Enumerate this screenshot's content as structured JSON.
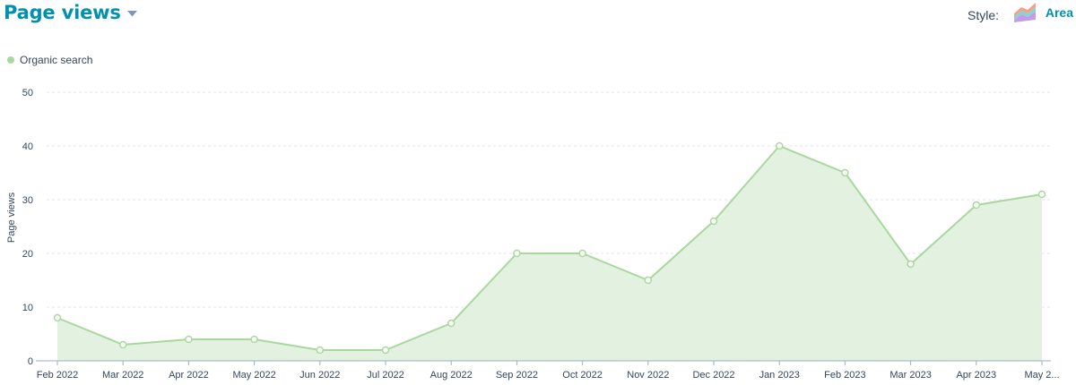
{
  "header": {
    "title": "Page views",
    "style_label": "Style:",
    "style_value": "Area"
  },
  "colors": {
    "accent": "#0091ae",
    "series_line": "#a8d89d",
    "series_fill": "#e3f2e0",
    "text": "#33475b"
  },
  "chart_data": {
    "type": "area",
    "ylabel": "Page views",
    "xlabel": "",
    "ylim": [
      0,
      50
    ],
    "yticks": [
      0,
      10,
      20,
      30,
      40,
      50
    ],
    "grid": true,
    "legend_position": "top-left",
    "categories": [
      "Feb 2022",
      "Mar 2022",
      "Apr 2022",
      "May 2022",
      "Jun 2022",
      "Jul 2022",
      "Aug 2022",
      "Sep 2022",
      "Oct 2022",
      "Nov 2022",
      "Dec 2022",
      "Jan 2023",
      "Feb 2023",
      "Mar 2023",
      "Apr 2023",
      "May 2..."
    ],
    "series": [
      {
        "name": "Organic search",
        "values": [
          8,
          3,
          4,
          4,
          2,
          2,
          7,
          20,
          20,
          15,
          26,
          40,
          35,
          18,
          29,
          31
        ]
      }
    ]
  }
}
